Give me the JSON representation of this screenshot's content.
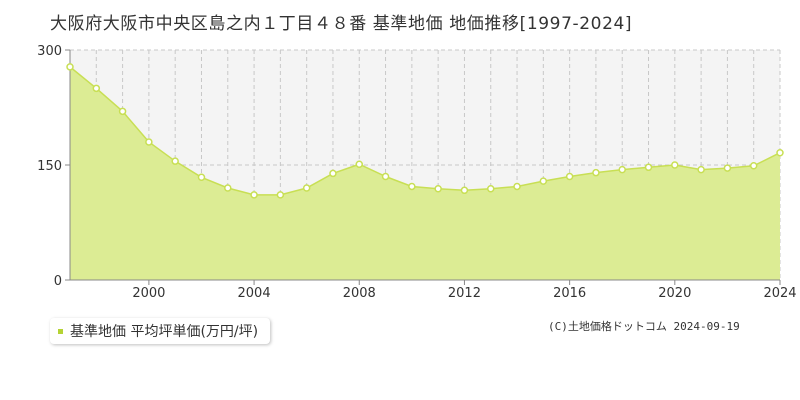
{
  "chart_data": {
    "type": "area",
    "title": "大阪府大阪市中央区島之内１丁目４８番 基準地価 地価推移[1997-2024]",
    "x": [
      1997,
      1998,
      1999,
      2000,
      2001,
      2002,
      2003,
      2004,
      2005,
      2006,
      2007,
      2008,
      2009,
      2010,
      2011,
      2012,
      2013,
      2014,
      2015,
      2016,
      2017,
      2018,
      2019,
      2020,
      2021,
      2022,
      2023,
      2024
    ],
    "series": [
      {
        "name": "基準地価 平均坪単価(万円/坪)",
        "values": [
          278,
          250,
          220,
          180,
          155,
          134,
          120,
          111,
          111,
          120,
          139,
          151,
          135,
          122,
          119,
          117,
          119,
          122,
          129,
          135,
          140,
          144,
          147,
          150,
          144,
          146,
          149,
          166
        ]
      }
    ],
    "x_tick_labels": [
      "2000",
      "2004",
      "2008",
      "2012",
      "2016",
      "2020",
      "2024"
    ],
    "y_tick_labels": [
      "0",
      "150",
      "300"
    ],
    "ylim": [
      0,
      300
    ],
    "xlim": [
      1997,
      2024
    ],
    "grid": true,
    "legend_position": "bottom-left",
    "colors": {
      "fill": "#dcec94",
      "line": "#c8df54",
      "marker_fill": "#ffffff",
      "legend_marker": "#b5d334",
      "grid": "#c8c8c8",
      "axis": "#888888",
      "shade_above": "#f4f4f4"
    }
  },
  "credit": "(C)土地価格ドットコム 2024-09-19"
}
